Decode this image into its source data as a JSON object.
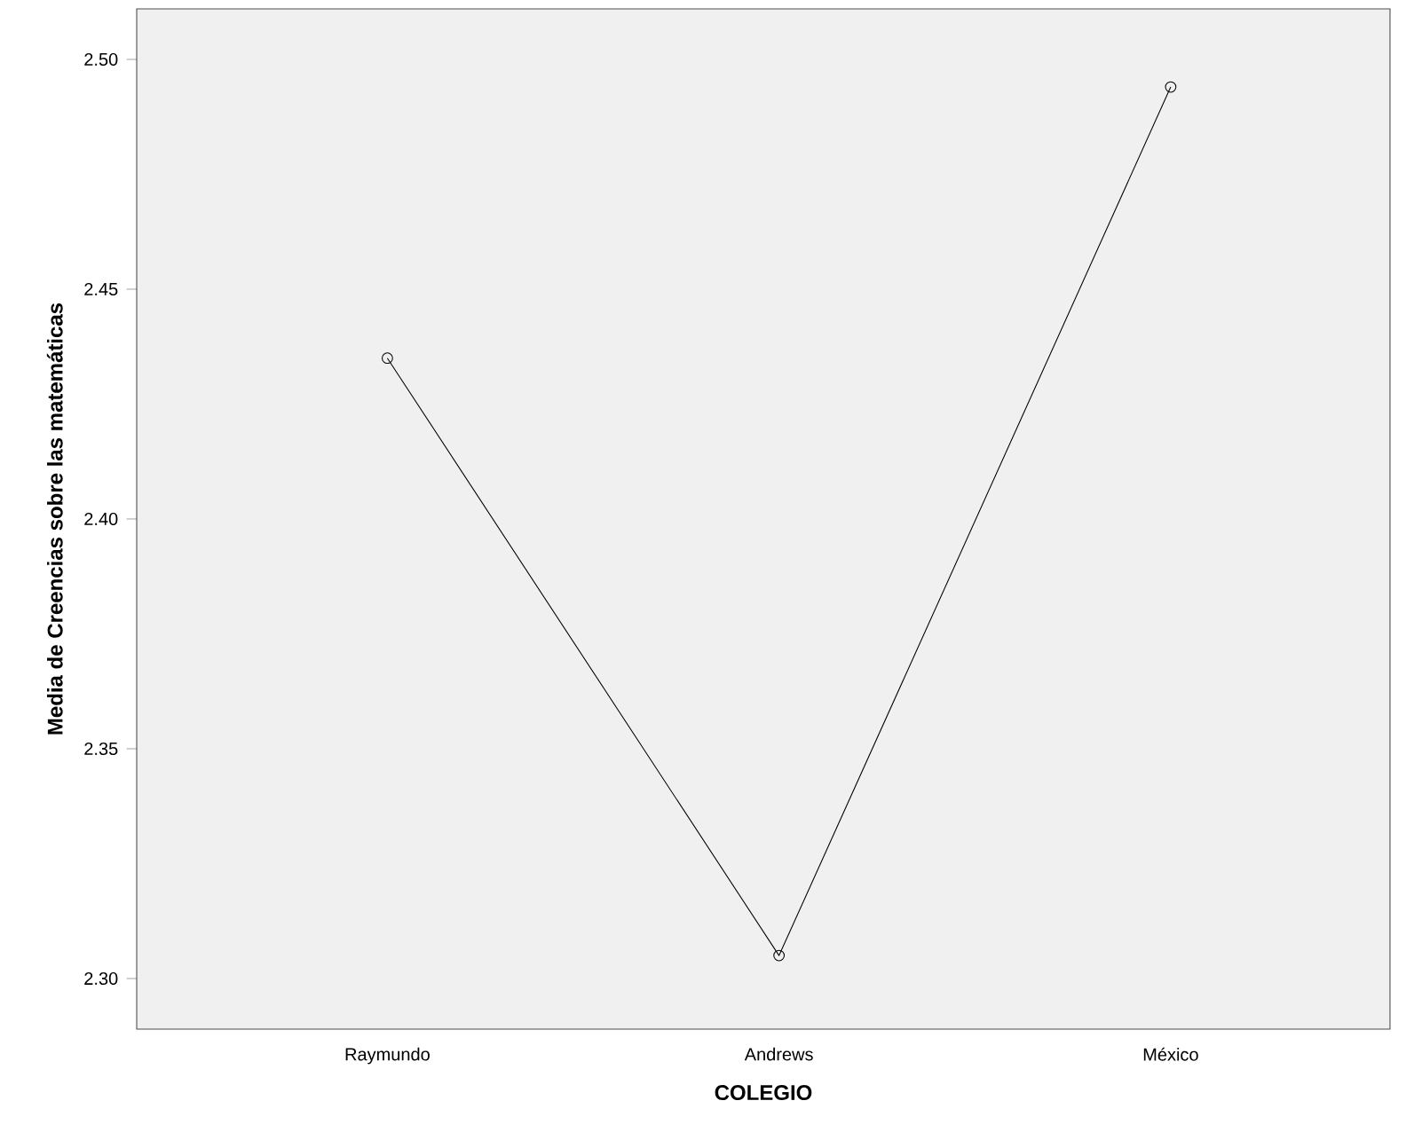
{
  "chart_data": {
    "type": "line",
    "xlabel": "COLEGIO",
    "ylabel": "Media de Creencias sobre las matemáticas",
    "categories": [
      "Raymundo",
      "Andrews",
      "México"
    ],
    "values": [
      2.435,
      2.305,
      2.494
    ],
    "color": "#000000",
    "marker": "circle",
    "line_style": "solid",
    "ylim": [
      2.289,
      2.511
    ],
    "yticks": [
      {
        "value": 2.3,
        "label": "2.30"
      },
      {
        "value": 2.35,
        "label": "2.35"
      },
      {
        "value": 2.4,
        "label": "2.40"
      },
      {
        "value": 2.45,
        "label": "2.45"
      },
      {
        "value": 2.5,
        "label": "2.50"
      }
    ],
    "grid": false
  }
}
